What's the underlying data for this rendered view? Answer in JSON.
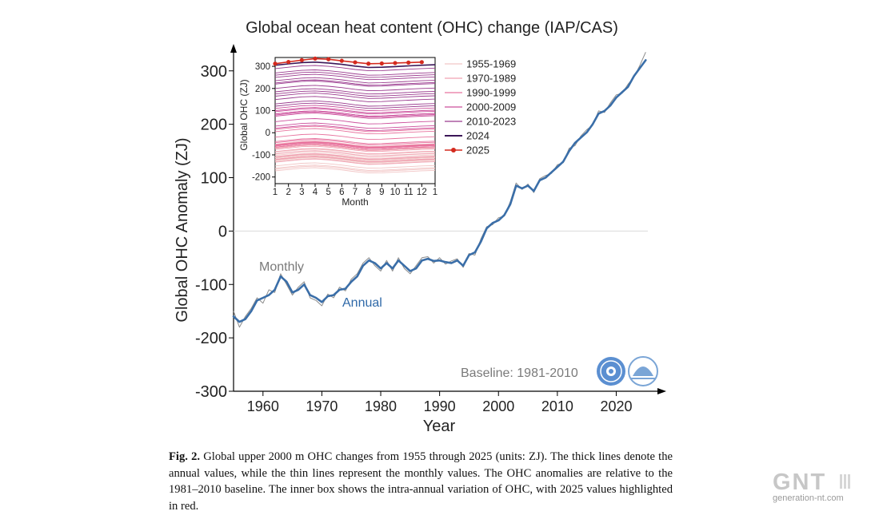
{
  "chart_data": [
    {
      "type": "line",
      "title": "Global ocean heat content (OHC) change (IAP/CAS)",
      "xlabel": "Year",
      "ylabel": "Global OHC Anomaly (ZJ)",
      "xlim": [
        1955,
        2027
      ],
      "ylim": [
        -300,
        340
      ],
      "xticks": [
        1960,
        1970,
        1980,
        1990,
        2000,
        2010,
        2020
      ],
      "yticks": [
        -300,
        -200,
        -100,
        0,
        100,
        200,
        300
      ],
      "annotations": [
        "Monthly",
        "Annual",
        "Baseline: 1981-2010"
      ],
      "series": [
        {
          "name": "Annual",
          "color": "#3a6ea8",
          "x": [
            1955,
            1956,
            1957,
            1958,
            1959,
            1960,
            1961,
            1962,
            1963,
            1964,
            1965,
            1966,
            1967,
            1968,
            1969,
            1970,
            1971,
            1972,
            1973,
            1974,
            1975,
            1976,
            1977,
            1978,
            1979,
            1980,
            1981,
            1982,
            1983,
            1984,
            1985,
            1986,
            1987,
            1988,
            1989,
            1990,
            1991,
            1992,
            1993,
            1994,
            1995,
            1996,
            1997,
            1998,
            1999,
            2000,
            2001,
            2002,
            2003,
            2004,
            2005,
            2006,
            2007,
            2008,
            2009,
            2010,
            2011,
            2012,
            2013,
            2014,
            2015,
            2016,
            2017,
            2018,
            2019,
            2020,
            2021,
            2022,
            2023,
            2024,
            2025
          ],
          "values": [
            -160,
            -170,
            -165,
            -150,
            -130,
            -125,
            -120,
            -110,
            -85,
            -95,
            -115,
            -110,
            -100,
            -120,
            -125,
            -133,
            -122,
            -120,
            -110,
            -108,
            -95,
            -85,
            -65,
            -55,
            -60,
            -70,
            -60,
            -70,
            -55,
            -65,
            -75,
            -70,
            -55,
            -52,
            -56,
            -55,
            -58,
            -60,
            -55,
            -65,
            -45,
            -40,
            -20,
            5,
            15,
            20,
            30,
            50,
            85,
            80,
            85,
            75,
            95,
            100,
            110,
            120,
            130,
            150,
            165,
            175,
            185,
            200,
            220,
            225,
            235,
            250,
            260,
            270,
            290,
            305,
            320
          ]
        },
        {
          "name": "Monthly",
          "color": "#8c8c8c",
          "x": [
            1955,
            1956,
            1957,
            1958,
            1959,
            1960,
            1961,
            1962,
            1963,
            1964,
            1965,
            1966,
            1967,
            1968,
            1969,
            1970,
            1971,
            1972,
            1973,
            1974,
            1975,
            1976,
            1977,
            1978,
            1979,
            1980,
            1981,
            1982,
            1983,
            1984,
            1985,
            1986,
            1987,
            1988,
            1989,
            1990,
            1991,
            1992,
            1993,
            1994,
            1995,
            1996,
            1997,
            1998,
            1999,
            2000,
            2001,
            2002,
            2003,
            2004,
            2005,
            2006,
            2007,
            2008,
            2009,
            2010,
            2011,
            2012,
            2013,
            2014,
            2015,
            2016,
            2017,
            2018,
            2019,
            2020,
            2021,
            2022,
            2023,
            2024,
            2025
          ],
          "values": [
            -150,
            -180,
            -160,
            -145,
            -125,
            -135,
            -110,
            -115,
            -80,
            -100,
            -120,
            -105,
            -95,
            -125,
            -130,
            -140,
            -118,
            -125,
            -105,
            -112,
            -90,
            -80,
            -60,
            -50,
            -65,
            -75,
            -55,
            -75,
            -50,
            -70,
            -80,
            -65,
            -50,
            -48,
            -60,
            -50,
            -62,
            -56,
            -52,
            -68,
            -42,
            -45,
            -15,
            8,
            12,
            25,
            28,
            55,
            90,
            78,
            88,
            72,
            98,
            104,
            108,
            124,
            128,
            155,
            160,
            178,
            190,
            198,
            225,
            222,
            240,
            255,
            258,
            275,
            288,
            310,
            335
          ]
        }
      ]
    },
    {
      "type": "line",
      "xlabel": "Month",
      "ylabel": "Global OHC (ZJ)",
      "xticks": [
        "1",
        "2",
        "3",
        "4",
        "5",
        "6",
        "7",
        "8",
        "9",
        "10",
        "11",
        "12",
        "1"
      ],
      "yticks": [
        -200,
        -100,
        0,
        100,
        200,
        300
      ],
      "ylim": [
        -230,
        340
      ],
      "legend_position": "right",
      "legend": [
        {
          "label": "1955-1969",
          "color": "#f2c6c6"
        },
        {
          "label": "1970-1989",
          "color": "#f0a2b2"
        },
        {
          "label": "1990-1999",
          "color": "#e8749f"
        },
        {
          "label": "2000-2009",
          "color": "#cc4f9c"
        },
        {
          "label": "2010-2023",
          "color": "#9a3a8e"
        },
        {
          "label": "2024",
          "color": "#3b1658"
        },
        {
          "label": "2025",
          "color": "#d42a1e"
        }
      ],
      "seasonal_shape": [
        0,
        6,
        12,
        14,
        10,
        4,
        -4,
        -10,
        -9,
        -6,
        -3,
        0,
        2
      ],
      "year_baselines": [
        {
          "group": "1955-1969",
          "values": [
            -160,
            -172,
            -165,
            -150,
            -130,
            -125,
            -120,
            -112,
            -88,
            -96,
            -115,
            -110,
            -102,
            -120,
            -125
          ]
        },
        {
          "group": "1970-1989",
          "values": [
            -133,
            -122,
            -120,
            -110,
            -108,
            -95,
            -85,
            -66,
            -56,
            -60,
            -70,
            -60,
            -70,
            -56,
            -65,
            -75,
            -70,
            -55,
            -52,
            -56
          ]
        },
        {
          "group": "1990-1999",
          "values": [
            -55,
            -58,
            -60,
            -55,
            -65,
            -45,
            -40,
            -20,
            5,
            15
          ]
        },
        {
          "group": "2000-2009",
          "values": [
            20,
            30,
            50,
            85,
            80,
            85,
            75,
            95,
            100,
            110
          ]
        },
        {
          "group": "2010-2023",
          "values": [
            120,
            130,
            150,
            165,
            175,
            185,
            200,
            220,
            225,
            235,
            250,
            260,
            270,
            290
          ]
        },
        {
          "group": "2024",
          "values": [
            305
          ]
        }
      ],
      "series": [
        {
          "name": "2025",
          "color": "#d42a1e",
          "x": [
            1,
            2,
            3,
            4,
            5,
            6,
            7,
            8,
            9,
            10,
            11,
            12
          ],
          "values": [
            312,
            320,
            328,
            335,
            332,
            325,
            318,
            312,
            313,
            315,
            317,
            319
          ]
        }
      ]
    }
  ],
  "caption": {
    "label": "Fig. 2.",
    "text": "Global upper 2000 m OHC changes from 1955 through 2025 (units: ZJ). The thick lines denote the annual values, while the thin lines represent the monthly values. The OHC anomalies are relative to the 1981–2010 baseline. The inner box shows the intra-annual variation of OHC, with 2025 values highlighted in red."
  },
  "watermark": {
    "logo": "GNT",
    "url": "generation-nt.com"
  },
  "colors": {
    "annual": "#3a6ea8",
    "monthly": "#8c8c8c",
    "highlight_2025": "#d42a1e",
    "logo_blue": "#5b8fd1"
  },
  "icons": [
    "cas-logo-icon",
    "iap-logo-icon"
  ]
}
